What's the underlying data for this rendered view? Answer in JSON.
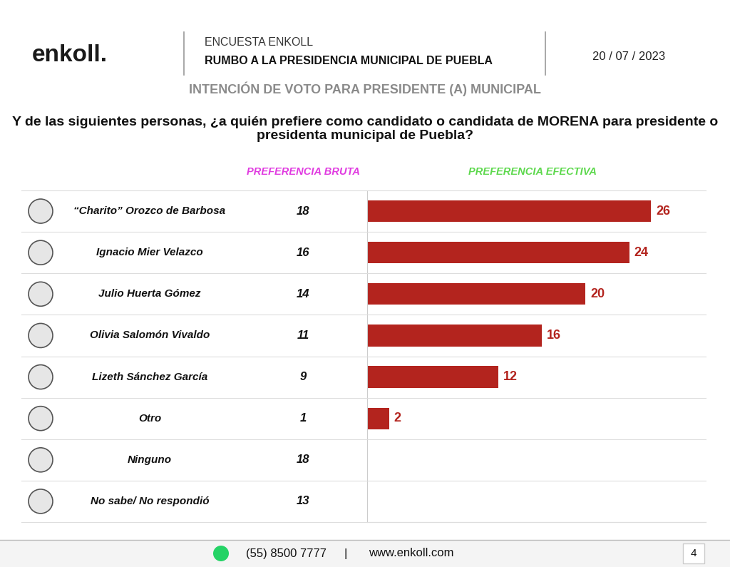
{
  "header": {
    "logo": "enkoll.",
    "survey": "ENCUESTA ENKOLL",
    "race": "RUMBO A LA PRESIDENCIA MUNICIPAL DE PUEBLA",
    "date": "20 / 07 / 2023"
  },
  "chart_data": {
    "type": "bar",
    "orientation": "horizontal",
    "subtitle": "INTENCIÓN DE VOTO PARA PRESIDENTE (A) MUNICIPAL",
    "title": "Y de las siguientes personas, ¿a quién prefiere como candidato o candidata de MORENA para presidente o presidenta municipal de Puebla?",
    "categories": [
      "“Charito” Orozco de Barbosa",
      "Ignacio Mier Velazco",
      "Julio Huerta Gómez",
      "Olivia Salomón Vivaldo",
      "Lizeth Sánchez García",
      "Otro",
      "Ninguno",
      "No sabe/ No respondió"
    ],
    "series": [
      {
        "name": "PREFERENCIA BRUTA",
        "type": "text",
        "values": [
          18,
          16,
          14,
          11,
          9,
          1,
          18,
          13
        ]
      },
      {
        "name": "PREFERENCIA EFECTIVA",
        "type": "bar",
        "color": "#b3241e",
        "values": [
          26,
          24,
          20,
          16,
          12,
          2,
          null,
          null
        ]
      }
    ],
    "xlim": [
      0,
      31
    ],
    "xticks": [],
    "data_labels": true,
    "tick_labels": false,
    "grid": false
  },
  "footer": {
    "phone": "(55) 8500 7777",
    "separator": "|",
    "website": "www.enkoll.com",
    "page": "4"
  }
}
